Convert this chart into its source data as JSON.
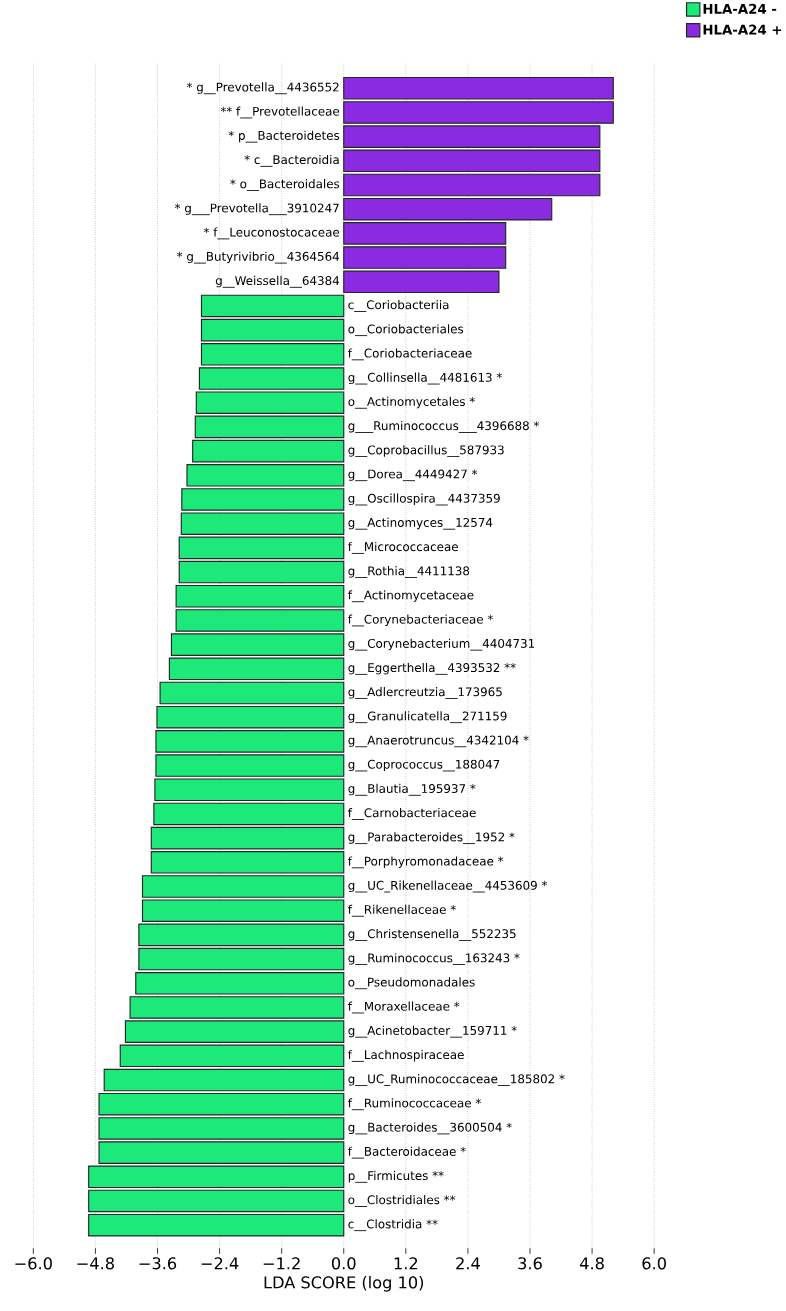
{
  "chart_data": {
    "type": "bar",
    "orientation": "horizontal",
    "xlabel": "LDA SCORE (log 10)",
    "categories": [
      "* g__Prevotella__4436552",
      "** f__Prevotellaceae",
      "* p__Bacteroidetes",
      "* c__Bacteroidia",
      "* o__Bacteroidales",
      "* g___Prevotella___3910247",
      "* f__Leuconostocaceae",
      "* g__Butyrivibrio__4364564",
      "g__Weissella__64384",
      "c__Coriobacteriia",
      "o__Coriobacteriales",
      "f__Coriobacteriaceae",
      "g__Collinsella__4481613 *",
      "o__Actinomycetales *",
      "g___Ruminococcus___4396688 *",
      "g__Coprobacillus__587933",
      "g__Dorea__4449427 *",
      "g__Oscillospira__4437359",
      "g__Actinomyces__12574",
      "f__Micrococcaceae",
      "g__Rothia__4411138",
      "f__Actinomycetaceae",
      "f__Corynebacteriaceae *",
      "g__Corynebacterium__4404731",
      "g__Eggerthella__4393532 **",
      "g__Adlercreutzia__173965",
      "g__Granulicatella__271159",
      "g__Anaerotruncus__4342104 *",
      "g__Coprococcus__188047",
      "g__Blautia__195937 *",
      "f__Carnobacteriaceae",
      "g__Parabacteroides__1952 *",
      "f__Porphyromonadaceae *",
      "g__UC_Rikenellaceae__4453609 *",
      "f__Rikenellaceae *",
      "g__Christensenella__552235",
      "g__Ruminococcus__163243 *",
      "o__Pseudomonadales",
      "f__Moraxellaceae *",
      "g__Acinetobacter__159711 *",
      "f__Lachnospiraceae",
      "g__UC_Ruminococcaceae__185802 *",
      "f__Ruminococcaceae *",
      "g__Bacteroides__3600504 *",
      "f__Bacteroidaceae *",
      "p__Firmicutes **",
      "o__Clostridiales **",
      "c__Clostridia **"
    ],
    "series": [
      {
        "name": "HLA-A24 -",
        "color": "#1de97a",
        "values": [
          null,
          null,
          null,
          null,
          null,
          null,
          null,
          null,
          null,
          -2.75,
          -2.75,
          -2.75,
          -2.79,
          -2.85,
          -2.87,
          -2.92,
          -3.03,
          -3.13,
          -3.14,
          -3.18,
          -3.18,
          -3.24,
          -3.24,
          -3.33,
          -3.37,
          -3.55,
          -3.61,
          -3.63,
          -3.63,
          -3.65,
          -3.67,
          -3.72,
          -3.72,
          -3.89,
          -3.89,
          -3.96,
          -3.96,
          -4.02,
          -4.13,
          -4.22,
          -4.32,
          -4.63,
          -4.73,
          -4.73,
          -4.73,
          -4.93,
          -4.93,
          -4.93
        ]
      },
      {
        "name": "HLA-A24 +",
        "color": "#8a2be2",
        "values": [
          5.21,
          5.21,
          4.95,
          4.95,
          4.95,
          4.02,
          3.13,
          3.13,
          3.0,
          null,
          null,
          null,
          null,
          null,
          null,
          null,
          null,
          null,
          null,
          null,
          null,
          null,
          null,
          null,
          null,
          null,
          null,
          null,
          null,
          null,
          null,
          null,
          null,
          null,
          null,
          null,
          null,
          null,
          null,
          null,
          null,
          null,
          null,
          null,
          null,
          null,
          null,
          null
        ]
      }
    ],
    "xlim": [
      -6.0,
      6.0
    ],
    "xticks": [
      {
        "value": -6.0,
        "label": "−6.0"
      },
      {
        "value": -4.8,
        "label": "−4.8"
      },
      {
        "value": -3.6,
        "label": "−3.6"
      },
      {
        "value": -2.4,
        "label": "−2.4"
      },
      {
        "value": -1.2,
        "label": "−1.2"
      },
      {
        "value": 0.0,
        "label": "0.0"
      },
      {
        "value": 1.2,
        "label": "1.2"
      },
      {
        "value": 2.4,
        "label": "2.4"
      },
      {
        "value": 3.6,
        "label": "3.6"
      },
      {
        "value": 4.8,
        "label": "4.8"
      },
      {
        "value": 6.0,
        "label": "6.0"
      }
    ],
    "grid": "x",
    "legend": "top right"
  }
}
